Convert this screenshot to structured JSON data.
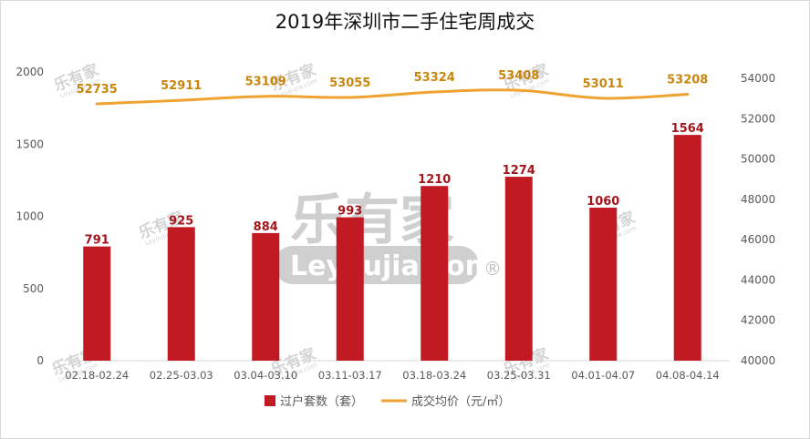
{
  "chart_data": {
    "type": "bar",
    "title": "2019年深圳市二手住宅周成交",
    "categories": [
      "02.18-02.24",
      "02.25-03.03",
      "03.04-03.10",
      "03.11-03.17",
      "03.18-03.24",
      "03.25-03.31",
      "04.01-04.07",
      "04.08-04.14"
    ],
    "series": [
      {
        "name": "过户套数（套）",
        "type": "bar",
        "axis": "left",
        "color": "#c21a22",
        "values": [
          791,
          925,
          884,
          993,
          1210,
          1274,
          1060,
          1564
        ]
      },
      {
        "name": "成交均价（元/㎡）",
        "type": "line",
        "axis": "right",
        "color": "#f0a231",
        "values": [
          52735,
          52911,
          53109,
          53055,
          53324,
          53408,
          53011,
          53208
        ]
      }
    ],
    "y_left": {
      "min": 0,
      "max": 2000,
      "ticks": [
        0,
        500,
        1000,
        1500,
        2000
      ]
    },
    "y_right": {
      "min": 40000,
      "max": 54000,
      "ticks": [
        40000,
        42000,
        44000,
        46000,
        48000,
        50000,
        52000,
        54000
      ]
    },
    "grid": false,
    "legend": "bottom-center"
  },
  "watermark": {
    "brand": "乐有家",
    "domain": "Leyoujia.com",
    "registered": "®"
  }
}
